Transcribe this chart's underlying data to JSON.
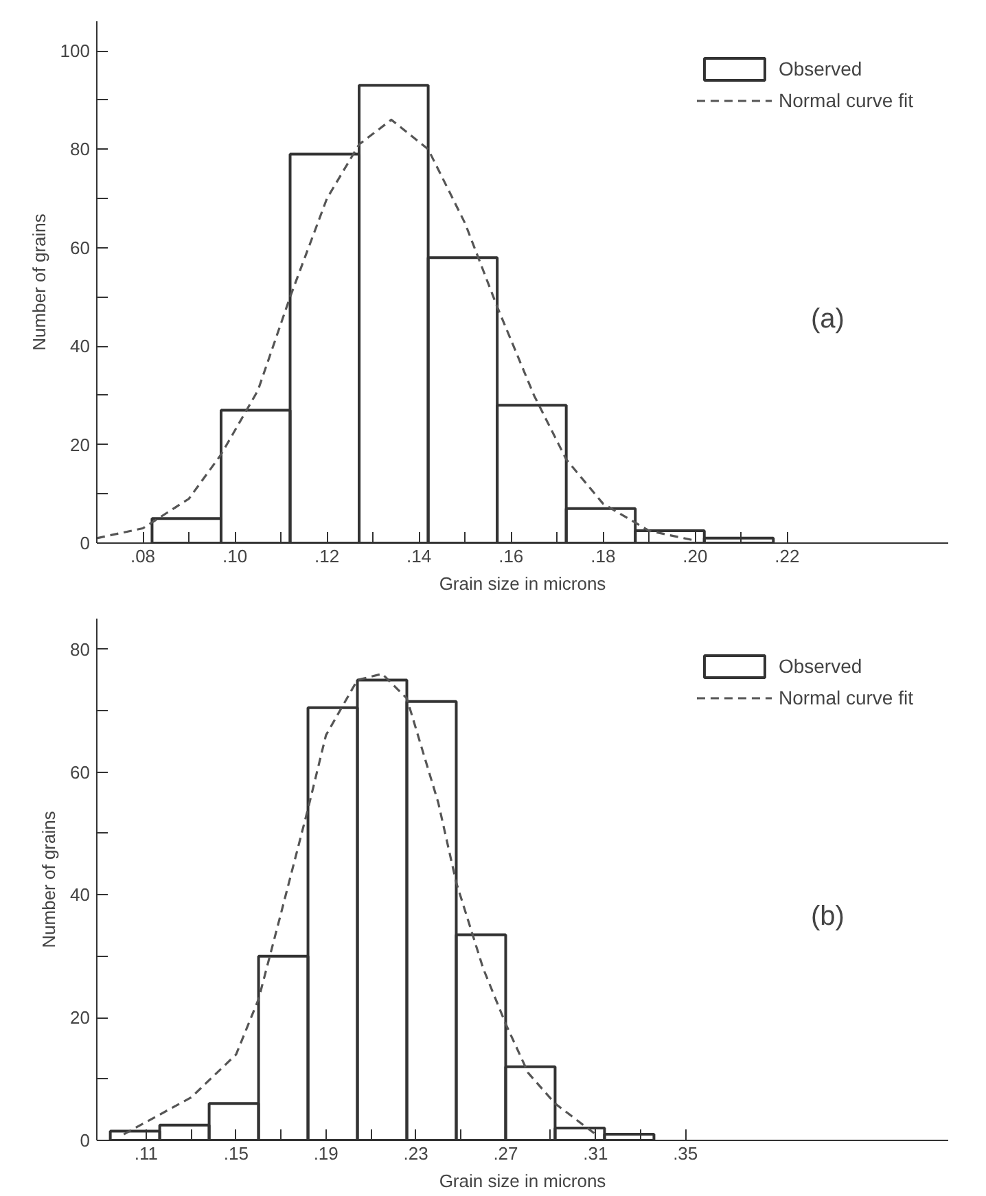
{
  "chart_data": [
    {
      "type": "histogram",
      "xlabel": "Grain size in microns",
      "ylabel": "Number of grains",
      "annotations": [
        "(a)"
      ],
      "legend": "top right",
      "xlim": [
        0.07,
        0.255
      ],
      "ylim": [
        0,
        106
      ],
      "xticks": [
        {
          "value": 0.08,
          "label": ".08"
        },
        {
          "value": 0.09,
          "label": null
        },
        {
          "value": 0.1,
          "label": ".10"
        },
        {
          "value": 0.11,
          "label": null
        },
        {
          "value": 0.12,
          "label": ".12"
        },
        {
          "value": 0.13,
          "label": null
        },
        {
          "value": 0.14,
          "label": ".14"
        },
        {
          "value": 0.15,
          "label": null
        },
        {
          "value": 0.16,
          "label": ".16"
        },
        {
          "value": 0.17,
          "label": null
        },
        {
          "value": 0.18,
          "label": ".18"
        },
        {
          "value": 0.19,
          "label": null
        },
        {
          "value": 0.2,
          "label": ".20"
        },
        {
          "value": 0.21,
          "label": null
        },
        {
          "value": 0.22,
          "label": ".22"
        }
      ],
      "yticks": [
        0,
        {
          "value": 10,
          "label": null
        },
        20,
        {
          "value": 30,
          "label": null
        },
        40,
        {
          "value": 50,
          "label": null
        },
        60,
        {
          "value": 70,
          "label": null
        },
        80,
        {
          "value": 90,
          "label": null
        },
        100
      ],
      "series": [
        {
          "name": "Observed",
          "color": "#333333",
          "bins": [
            0.082,
            0.097,
            0.112,
            0.127,
            0.142,
            0.157,
            0.172,
            0.187,
            0.202,
            0.217
          ],
          "values": [
            5,
            27,
            79,
            93,
            58,
            28,
            7,
            2.5,
            1
          ]
        },
        {
          "name": "Normal curve fit",
          "type": "line",
          "line_style": "dashed",
          "color": "#555555",
          "x": [
            0.07,
            0.08,
            0.09,
            0.097,
            0.105,
            0.112,
            0.12,
            0.127,
            0.134,
            0.142,
            0.15,
            0.157,
            0.165,
            0.172,
            0.18,
            0.19,
            0.2
          ],
          "values": [
            1,
            3,
            9,
            18,
            31,
            50,
            70,
            81,
            86,
            80,
            65,
            48,
            30,
            17,
            8,
            2.5,
            0.5
          ]
        }
      ]
    },
    {
      "type": "histogram",
      "xlabel": "Grain size in microns",
      "ylabel": "Number of grains",
      "annotations": [
        "(b)"
      ],
      "legend": "top right",
      "xlim": [
        0.088,
        0.467
      ],
      "ylim": [
        0,
        85
      ],
      "xticks": [
        {
          "value": 0.11,
          "label": ".11"
        },
        {
          "value": 0.13,
          "label": null
        },
        {
          "value": 0.15,
          "label": ".15"
        },
        {
          "value": 0.17,
          "label": null
        },
        {
          "value": 0.19,
          "label": ".19"
        },
        {
          "value": 0.21,
          "label": null
        },
        {
          "value": 0.23,
          "label": ".23"
        },
        {
          "value": 0.25,
          "label": null
        },
        {
          "value": 0.27,
          "label": ".27"
        },
        {
          "value": 0.29,
          "label": null
        },
        {
          "value": 0.31,
          "label": ".31"
        },
        {
          "value": 0.33,
          "label": null
        },
        {
          "value": 0.35,
          "label": ".35"
        }
      ],
      "yticks": [
        0,
        {
          "value": 10,
          "label": null
        },
        20,
        {
          "value": 30,
          "label": null
        },
        40,
        {
          "value": 50,
          "label": null
        },
        60,
        {
          "value": 70,
          "label": null
        },
        80
      ],
      "series": [
        {
          "name": "Observed",
          "color": "#333333",
          "bins": [
            0.094,
            0.116,
            0.138,
            0.16,
            0.182,
            0.204,
            0.226,
            0.248,
            0.27,
            0.292,
            0.314,
            0.336
          ],
          "values": [
            1.5,
            2.5,
            6,
            30,
            70.5,
            75,
            71.5,
            33.5,
            12,
            2,
            1
          ]
        },
        {
          "name": "Normal curve fit",
          "type": "line",
          "line_style": "dashed",
          "color": "#555555",
          "x": [
            0.1,
            0.11,
            0.13,
            0.15,
            0.16,
            0.17,
            0.182,
            0.19,
            0.204,
            0.215,
            0.226,
            0.24,
            0.248,
            0.26,
            0.27,
            0.28,
            0.292,
            0.31
          ],
          "values": [
            1,
            3,
            7,
            14,
            23,
            37,
            54,
            66,
            75,
            76,
            72,
            55,
            42,
            28,
            19,
            11,
            6,
            1
          ]
        }
      ]
    }
  ]
}
